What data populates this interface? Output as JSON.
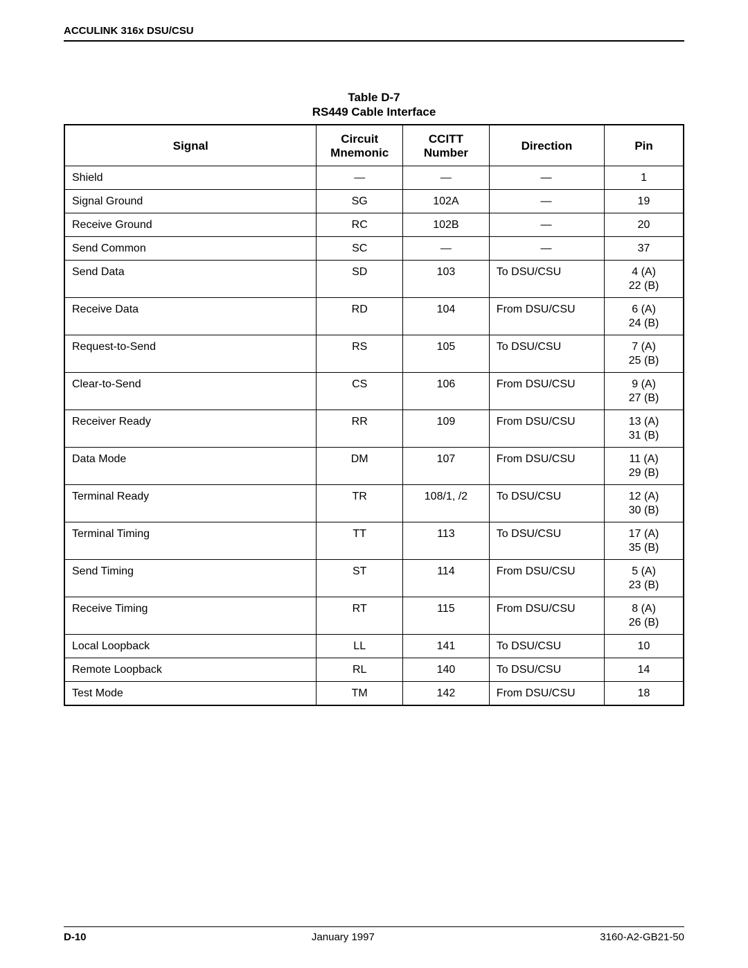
{
  "header": {
    "title": "ACCULINK 316x DSU/CSU"
  },
  "table": {
    "caption_line1": "Table D-7",
    "caption_line2": "RS449 Cable Interface",
    "columns": [
      {
        "label": "Signal"
      },
      {
        "label_line1": "Circuit",
        "label_line2": "Mnemonic"
      },
      {
        "label_line1": "CCITT",
        "label_line2": "Number"
      },
      {
        "label": "Direction"
      },
      {
        "label": "Pin"
      }
    ],
    "rows": [
      {
        "signal": "Shield",
        "mnemonic": "—",
        "ccitt": "—",
        "direction": "—",
        "pin": "1"
      },
      {
        "signal": "Signal Ground",
        "mnemonic": "SG",
        "ccitt": "102A",
        "direction": "—",
        "pin": "19"
      },
      {
        "signal": "Receive Ground",
        "mnemonic": "RC",
        "ccitt": "102B",
        "direction": "—",
        "pin": "20"
      },
      {
        "signal": "Send Common",
        "mnemonic": "SC",
        "ccitt": "—",
        "direction": "—",
        "pin": "37"
      },
      {
        "signal": "Send Data",
        "mnemonic": "SD",
        "ccitt": "103",
        "direction": "To DSU/CSU",
        "pin": "4 (A)\n22 (B)"
      },
      {
        "signal": "Receive Data",
        "mnemonic": "RD",
        "ccitt": "104",
        "direction": "From DSU/CSU",
        "pin": "6 (A)\n24 (B)"
      },
      {
        "signal": "Request-to-Send",
        "mnemonic": "RS",
        "ccitt": "105",
        "direction": "To DSU/CSU",
        "pin": "7 (A)\n25 (B)"
      },
      {
        "signal": "Clear-to-Send",
        "mnemonic": "CS",
        "ccitt": "106",
        "direction": "From DSU/CSU",
        "pin": "9 (A)\n27 (B)"
      },
      {
        "signal": "Receiver Ready",
        "mnemonic": "RR",
        "ccitt": "109",
        "direction": "From DSU/CSU",
        "pin": "13 (A)\n31 (B)"
      },
      {
        "signal": "Data Mode",
        "mnemonic": "DM",
        "ccitt": "107",
        "direction": "From DSU/CSU",
        "pin": "11 (A)\n29 (B)"
      },
      {
        "signal": "Terminal Ready",
        "mnemonic": "TR",
        "ccitt": "108/1, /2",
        "direction": "To DSU/CSU",
        "pin": "12 (A)\n30 (B)"
      },
      {
        "signal": "Terminal Timing",
        "mnemonic": "TT",
        "ccitt": "113",
        "direction": "To DSU/CSU",
        "pin": "17 (A)\n35 (B)"
      },
      {
        "signal": "Send Timing",
        "mnemonic": "ST",
        "ccitt": "114",
        "direction": "From DSU/CSU",
        "pin": "5 (A)\n23 (B)"
      },
      {
        "signal": "Receive Timing",
        "mnemonic": "RT",
        "ccitt": "115",
        "direction": "From DSU/CSU",
        "pin": "8 (A)\n26 (B)"
      },
      {
        "signal": "Local Loopback",
        "mnemonic": "LL",
        "ccitt": "141",
        "direction": "To DSU/CSU",
        "pin": "10"
      },
      {
        "signal": "Remote Loopback",
        "mnemonic": "RL",
        "ccitt": "140",
        "direction": "To DSU/CSU",
        "pin": "14"
      },
      {
        "signal": "Test Mode",
        "mnemonic": "TM",
        "ccitt": "142",
        "direction": "From DSU/CSU",
        "pin": "18"
      }
    ]
  },
  "footer": {
    "page": "D-10",
    "date": "January 1997",
    "doc": "3160-A2-GB21-50"
  }
}
